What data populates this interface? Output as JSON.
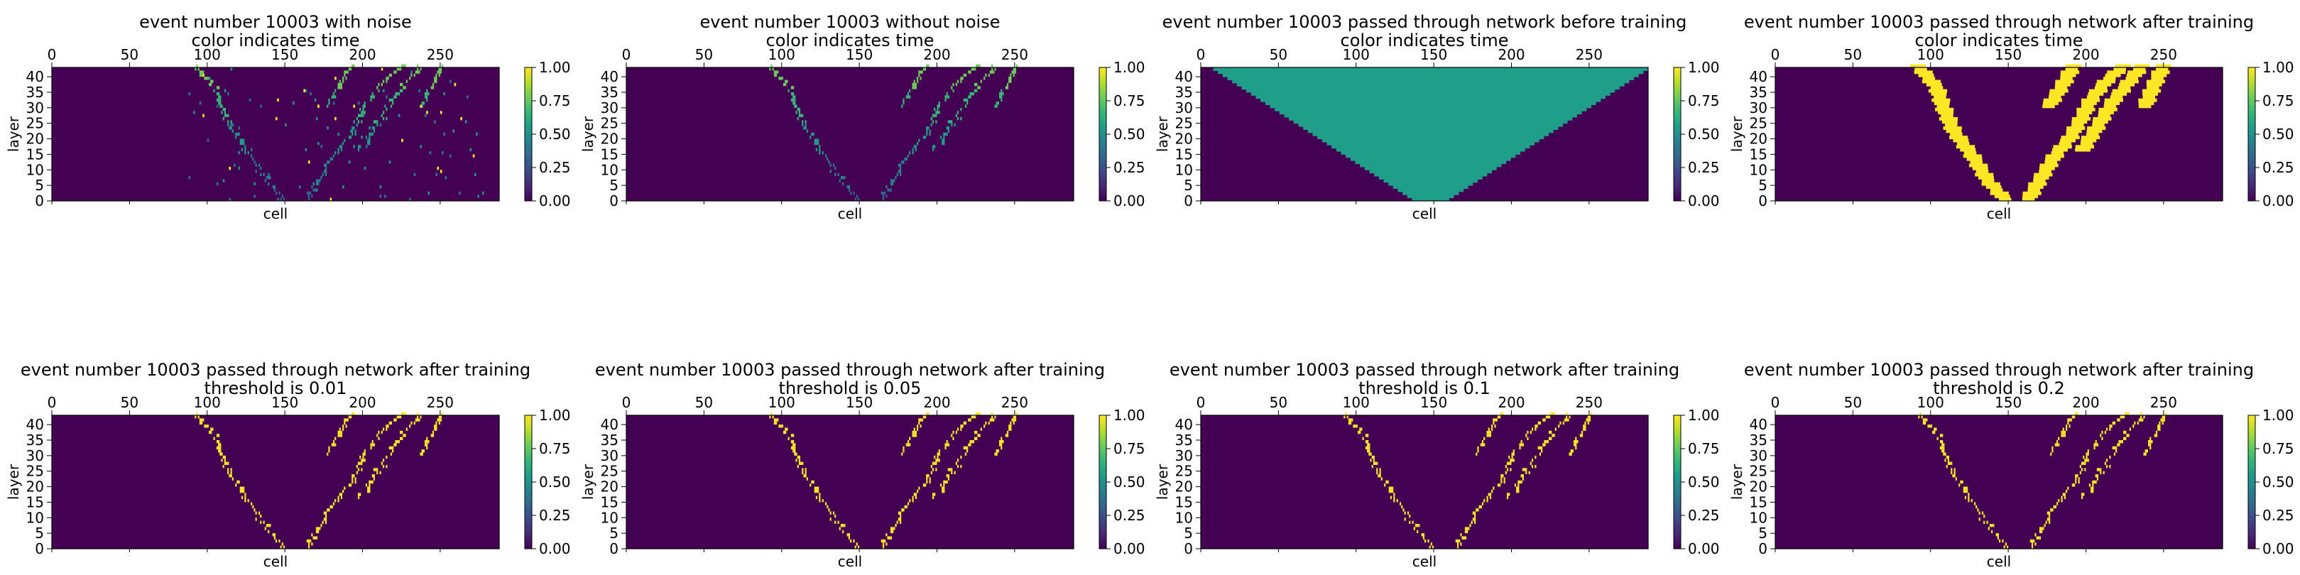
{
  "colors": {
    "background": "#440154",
    "noise": "#21918c",
    "hit": "#fde725",
    "viridis": [
      "#440154",
      "#482878",
      "#3e4989",
      "#31688e",
      "#26828e",
      "#1f9e89",
      "#35b779",
      "#6ece58",
      "#b5de2b",
      "#fde725"
    ]
  },
  "chart_data": [
    {
      "type": "heatmap",
      "title": [
        "event number 10003 with noise",
        "color indicates time"
      ],
      "xlabel": "cell",
      "ylabel": "layer",
      "xlim": [
        0,
        288
      ],
      "ylim": [
        0,
        43
      ],
      "xticks": [
        "0",
        "50",
        "100",
        "150",
        "200",
        "250"
      ],
      "yticks": [
        "0",
        "5",
        "10",
        "15",
        "20",
        "25",
        "30",
        "35",
        "40"
      ],
      "colorbar": {
        "range": [
          0,
          1
        ],
        "ticks": [
          "0.00",
          "0.25",
          "0.50",
          "0.75",
          "1.00"
        ]
      },
      "content": "track_with_noise"
    },
    {
      "type": "heatmap",
      "title": [
        "event number 10003 without noise",
        "color indicates time"
      ],
      "xlabel": "cell",
      "ylabel": "layer",
      "xlim": [
        0,
        288
      ],
      "ylim": [
        0,
        43
      ],
      "xticks": [
        "0",
        "50",
        "100",
        "150",
        "200",
        "250"
      ],
      "yticks": [
        "0",
        "5",
        "10",
        "15",
        "20",
        "25",
        "30",
        "35",
        "40"
      ],
      "colorbar": {
        "range": [
          0,
          1
        ],
        "ticks": [
          "0.00",
          "0.25",
          "0.50",
          "0.75",
          "1.00"
        ]
      },
      "content": "track_time"
    },
    {
      "type": "heatmap",
      "title": [
        "event number 10003 passed through network before training",
        "color indicates time"
      ],
      "xlabel": "cell",
      "ylabel": "layer",
      "xlim": [
        0,
        288
      ],
      "ylim": [
        0,
        43
      ],
      "xticks": [
        "0",
        "50",
        "100",
        "150",
        "200",
        "250"
      ],
      "yticks": [
        "0",
        "5",
        "10",
        "15",
        "20",
        "25",
        "30",
        "35",
        "40"
      ],
      "colorbar": {
        "range": [
          0,
          1
        ],
        "ticks": [
          "0.00",
          "0.25",
          "0.50",
          "0.75",
          "1.00"
        ]
      },
      "content": "untrained_triangle",
      "triangle": {
        "uniform_value": 0.5,
        "apex_cell": 148,
        "bottom_half_width": 12,
        "top_half_width": 140
      }
    },
    {
      "type": "heatmap",
      "title": [
        "event number 10003 passed through network after training",
        "color indicates time"
      ],
      "xlabel": "cell",
      "ylabel": "layer",
      "xlim": [
        0,
        288
      ],
      "ylim": [
        0,
        43
      ],
      "xticks": [
        "0",
        "50",
        "100",
        "150",
        "200",
        "250"
      ],
      "yticks": [
        "0",
        "5",
        "10",
        "15",
        "20",
        "25",
        "30",
        "35",
        "40"
      ],
      "colorbar": {
        "range": [
          0,
          1
        ],
        "ticks": [
          "0.00",
          "0.25",
          "0.50",
          "0.75",
          "1.00"
        ]
      },
      "content": "trained_band"
    },
    {
      "type": "heatmap",
      "title": [
        "event number 10003 passed through network after training",
        "threshold is 0.01"
      ],
      "xlabel": "cell",
      "ylabel": "layer",
      "xlim": [
        0,
        288
      ],
      "ylim": [
        0,
        43
      ],
      "xticks": [
        "0",
        "50",
        "100",
        "150",
        "200",
        "250"
      ],
      "yticks": [
        "0",
        "5",
        "10",
        "15",
        "20",
        "25",
        "30",
        "35",
        "40"
      ],
      "colorbar": {
        "range": [
          0,
          1
        ],
        "ticks": [
          "0.00",
          "0.25",
          "0.50",
          "0.75",
          "1.00"
        ]
      },
      "content": "track_binary",
      "threshold": 0.01
    },
    {
      "type": "heatmap",
      "title": [
        "event number 10003 passed through network after training",
        "threshold is 0.05"
      ],
      "xlabel": "cell",
      "ylabel": "layer",
      "xlim": [
        0,
        288
      ],
      "ylim": [
        0,
        43
      ],
      "xticks": [
        "0",
        "50",
        "100",
        "150",
        "200",
        "250"
      ],
      "yticks": [
        "0",
        "5",
        "10",
        "15",
        "20",
        "25",
        "30",
        "35",
        "40"
      ],
      "colorbar": {
        "range": [
          0,
          1
        ],
        "ticks": [
          "0.00",
          "0.25",
          "0.50",
          "0.75",
          "1.00"
        ]
      },
      "content": "track_binary",
      "threshold": 0.05
    },
    {
      "type": "heatmap",
      "title": [
        "event number 10003 passed through network after training",
        "threshold is 0.1"
      ],
      "xlabel": "cell",
      "ylabel": "layer",
      "xlim": [
        0,
        288
      ],
      "ylim": [
        0,
        43
      ],
      "xticks": [
        "0",
        "50",
        "100",
        "150",
        "200",
        "250"
      ],
      "yticks": [
        "0",
        "5",
        "10",
        "15",
        "20",
        "25",
        "30",
        "35",
        "40"
      ],
      "colorbar": {
        "range": [
          0,
          1
        ],
        "ticks": [
          "0.00",
          "0.25",
          "0.50",
          "0.75",
          "1.00"
        ]
      },
      "content": "track_binary",
      "threshold": 0.1
    },
    {
      "type": "heatmap",
      "title": [
        "event number 10003 passed through network after training",
        "threshold is 0.2"
      ],
      "xlabel": "cell",
      "ylabel": "layer",
      "xlim": [
        0,
        288
      ],
      "ylim": [
        0,
        43
      ],
      "xticks": [
        "0",
        "50",
        "100",
        "150",
        "200",
        "250"
      ],
      "yticks": [
        "0",
        "5",
        "10",
        "15",
        "20",
        "25",
        "30",
        "35",
        "40"
      ],
      "colorbar": {
        "range": [
          0,
          1
        ],
        "ticks": [
          "0.00",
          "0.25",
          "0.50",
          "0.75",
          "1.00"
        ]
      },
      "content": "track_binary",
      "threshold": 0.2
    }
  ],
  "tracks": [
    {
      "name": "left-branch",
      "points": [
        [
          0,
          148
        ],
        [
          6,
          137
        ],
        [
          14,
          127
        ],
        [
          22,
          115
        ],
        [
          30,
          108
        ],
        [
          36,
          104
        ],
        [
          43,
          92
        ]
      ]
    },
    {
      "name": "right-branch",
      "points": [
        [
          0,
          163
        ],
        [
          6,
          170
        ],
        [
          14,
          180
        ],
        [
          20,
          190
        ],
        [
          26,
          197
        ],
        [
          32,
          203
        ],
        [
          38,
          213
        ],
        [
          43,
          224
        ]
      ]
    },
    {
      "name": "right-upper",
      "points": [
        [
          16,
          198
        ],
        [
          24,
          208
        ],
        [
          32,
          218
        ],
        [
          38,
          228
        ],
        [
          43,
          236
        ]
      ]
    },
    {
      "name": "right-stub",
      "points": [
        [
          30,
          238
        ],
        [
          37,
          244
        ],
        [
          43,
          250
        ]
      ]
    },
    {
      "name": "mid-stub",
      "points": [
        [
          30,
          176
        ],
        [
          36,
          184
        ],
        [
          43,
          192
        ]
      ]
    }
  ]
}
